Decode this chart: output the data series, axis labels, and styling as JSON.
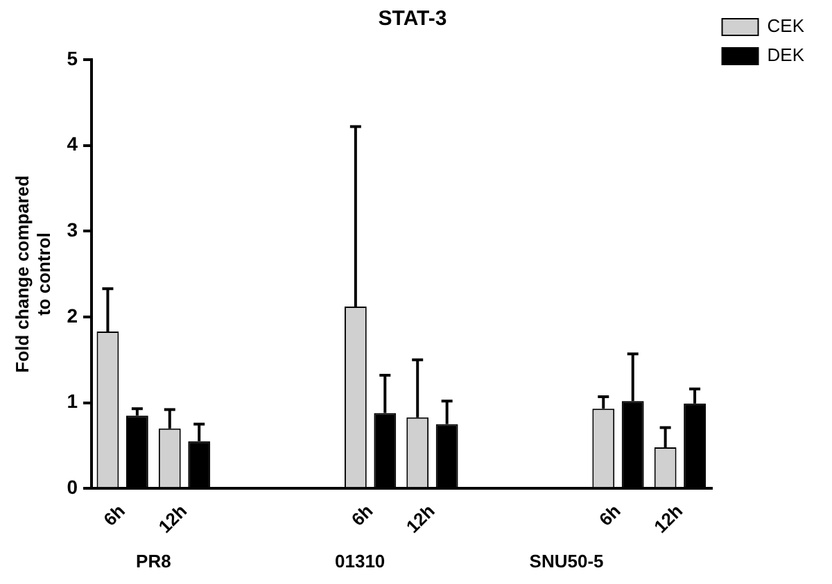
{
  "chart_data": {
    "type": "bar",
    "title": "STAT-3",
    "ylabel": "Fold change compared to control",
    "categories": [
      "6h",
      "12h",
      null,
      null,
      "6h",
      "12h",
      null,
      null,
      "6h",
      "12h"
    ],
    "series": [
      {
        "name": "CEK",
        "color": "#d0d0d0",
        "values": [
          1.83,
          0.7,
          null,
          null,
          2.12,
          0.83,
          null,
          null,
          0.93,
          0.48
        ],
        "errors": [
          [
            1.83,
            2.33
          ],
          [
            0.7,
            0.92
          ],
          null,
          null,
          [
            2.12,
            4.22
          ],
          [
            0.83,
            1.5
          ],
          null,
          null,
          [
            0.93,
            1.07
          ],
          [
            0.48,
            0.71
          ]
        ]
      },
      {
        "name": "DEK",
        "color": "#000000",
        "values": [
          0.85,
          0.55,
          null,
          null,
          0.88,
          0.75,
          null,
          null,
          1.02,
          0.99
        ],
        "errors": [
          [
            0.85,
            0.93
          ],
          [
            0.55,
            0.75
          ],
          null,
          null,
          [
            0.88,
            1.32
          ],
          [
            0.75,
            1.02
          ],
          null,
          null,
          [
            1.02,
            1.57
          ],
          [
            0.99,
            1.16
          ]
        ]
      }
    ],
    "ylim": [
      0,
      5
    ],
    "yticks": [
      0,
      1,
      2,
      3,
      4,
      5
    ],
    "grid": false,
    "legend": "top right",
    "annotations": [
      "PR8",
      "01310",
      "SNU50-5"
    ]
  }
}
